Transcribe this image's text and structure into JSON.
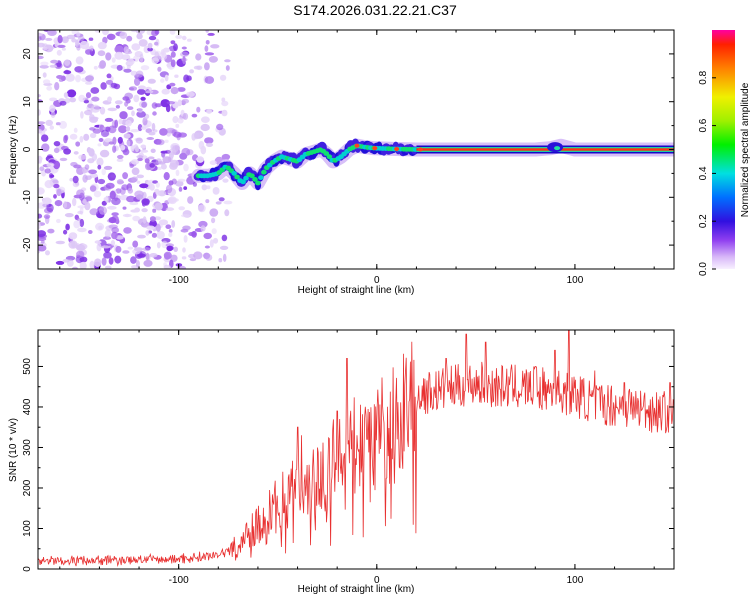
{
  "title": "S174.2026.031.22.21.C37",
  "chart_data": [
    {
      "type": "heatmap",
      "xlabel": "Height of straight line (km)",
      "ylabel": "Frequency (Hz)",
      "xlim": [
        -171,
        150
      ],
      "ylim": [
        -25,
        25
      ],
      "xticks": [
        -100,
        0,
        100
      ],
      "yticks": [
        -20,
        -10,
        0,
        10,
        20
      ],
      "noise_region_x": [
        -171,
        -75
      ],
      "signal_track": [
        [
          -90,
          -5.5
        ],
        [
          -85,
          -5.5
        ],
        [
          -80,
          -5
        ],
        [
          -76,
          -3.5
        ],
        [
          -72,
          -5
        ],
        [
          -68,
          -7
        ],
        [
          -64,
          -5
        ],
        [
          -60,
          -7
        ],
        [
          -56,
          -4
        ],
        [
          -52,
          -2.5
        ],
        [
          -48,
          -1.5
        ],
        [
          -44,
          -2
        ],
        [
          -40,
          -2.5
        ],
        [
          -36,
          -1
        ],
        [
          -32,
          -0.5
        ],
        [
          -28,
          0
        ],
        [
          -25,
          -1
        ],
        [
          -22,
          -2.5
        ],
        [
          -18,
          -1.5
        ],
        [
          -14,
          0
        ],
        [
          -10,
          0.8
        ],
        [
          -6,
          0.5
        ],
        [
          -2,
          0.3
        ],
        [
          3,
          0.2
        ],
        [
          10,
          0.1
        ],
        [
          20,
          0
        ],
        [
          40,
          0
        ],
        [
          60,
          0
        ],
        [
          80,
          0
        ],
        [
          88,
          0.3
        ],
        [
          93,
          0.8
        ],
        [
          100,
          0
        ],
        [
          120,
          0
        ],
        [
          150,
          0
        ]
      ],
      "colorbar": {
        "label": "Normalized spectral amplitude",
        "ticks": [
          "0.0",
          "0.2",
          "0.4",
          "0.6",
          "0.8"
        ],
        "range": [
          0,
          1
        ]
      }
    },
    {
      "type": "line",
      "xlabel": "Height of straight line (km)",
      "ylabel": "SNR (10 * v/v)",
      "xlim": [
        -171,
        150
      ],
      "ylim": [
        0,
        590
      ],
      "xticks": [
        -100,
        0,
        100
      ],
      "yticks": [
        0,
        100,
        200,
        300,
        400,
        500
      ],
      "color": "#e83030",
      "envelope": [
        [
          -171,
          20
        ],
        [
          -130,
          22
        ],
        [
          -100,
          25
        ],
        [
          -80,
          35
        ],
        [
          -70,
          60
        ],
        [
          -60,
          110
        ],
        [
          -50,
          160
        ],
        [
          -40,
          200
        ],
        [
          -30,
          230
        ],
        [
          -20,
          270
        ],
        [
          -10,
          310
        ],
        [
          0,
          330
        ],
        [
          10,
          360
        ],
        [
          20,
          430
        ],
        [
          30,
          440
        ],
        [
          40,
          450
        ],
        [
          50,
          460
        ],
        [
          60,
          450
        ],
        [
          70,
          450
        ],
        [
          80,
          445
        ],
        [
          90,
          440
        ],
        [
          100,
          430
        ],
        [
          110,
          410
        ],
        [
          120,
          405
        ],
        [
          130,
          400
        ],
        [
          140,
          390
        ],
        [
          150,
          385
        ]
      ],
      "spikes": [
        [
          -40,
          350
        ],
        [
          -38,
          330
        ],
        [
          -30,
          300
        ],
        [
          -20,
          390
        ],
        [
          -15,
          520
        ],
        [
          -10,
          330
        ],
        [
          -5,
          320
        ],
        [
          35,
          520
        ],
        [
          45,
          580
        ],
        [
          55,
          560
        ],
        [
          80,
          500
        ],
        [
          90,
          540
        ],
        [
          97,
          590
        ],
        [
          110,
          490
        ],
        [
          125,
          460
        ],
        [
          148,
          460
        ]
      ]
    }
  ]
}
